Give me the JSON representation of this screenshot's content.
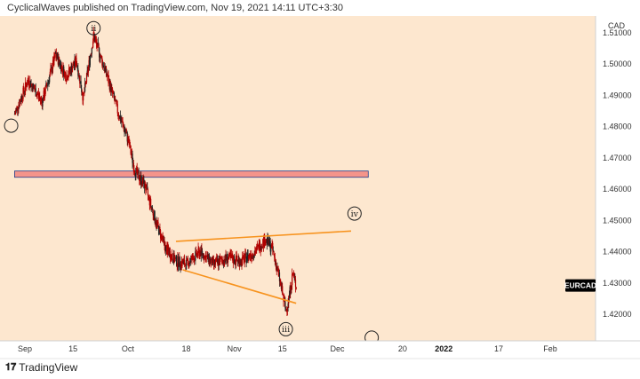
{
  "header": {
    "publisher_text": "CyclicalWaves published on TradingView.com, Nov 19, 2021 14:11 UTC+3:30"
  },
  "footer": {
    "brand": "TradingView",
    "logo_icon": "tradingview-logo-icon"
  },
  "colors": {
    "background": "#fde7cf",
    "candle": "#b00000",
    "candle_dark": "#222222",
    "zone_fill": "#f4948a",
    "zone_stroke": "#1f3a8a",
    "trendline": "#f7931e",
    "wave_circle": "#222222",
    "badge_bg": "#000000",
    "badge_text": "#ffffff"
  },
  "chart_data": {
    "type": "candlestick",
    "symbol": "EURCAD",
    "currency": "CAD",
    "ylim": [
      1.413,
      1.514
    ],
    "y_ticks": [
      "1.51000",
      "1.50000",
      "1.49000",
      "1.48000",
      "1.47000",
      "1.46000",
      "1.45000",
      "1.44000",
      "1.43000",
      "1.42000"
    ],
    "y_tick_values": [
      1.51,
      1.5,
      1.49,
      1.48,
      1.47,
      1.46,
      1.45,
      1.44,
      1.43,
      1.42
    ],
    "x_ticks": [
      {
        "label": "Sep",
        "bold": false
      },
      {
        "label": "15",
        "bold": false
      },
      {
        "label": "Oct",
        "bold": false
      },
      {
        "label": "18",
        "bold": false
      },
      {
        "label": "Nov",
        "bold": false
      },
      {
        "label": "15",
        "bold": false
      },
      {
        "label": "Dec",
        "bold": false
      },
      {
        "label": "20",
        "bold": false
      },
      {
        "label": "2022",
        "bold": true
      },
      {
        "label": "17",
        "bold": false
      },
      {
        "label": "Feb",
        "bold": false
      }
    ],
    "x_tick_dates": [
      "2021-09-01",
      "2021-09-15",
      "2021-10-01",
      "2021-10-18",
      "2021-11-01",
      "2021-11-15",
      "2021-12-01",
      "2021-12-20",
      "2022-01-01",
      "2022-01-17",
      "2022-02-01"
    ],
    "price_path": [
      [
        "2021-08-29",
        1.484
      ],
      [
        "2021-09-02",
        1.495
      ],
      [
        "2021-09-06",
        1.488
      ],
      [
        "2021-09-10",
        1.503
      ],
      [
        "2021-09-13",
        1.496
      ],
      [
        "2021-09-16",
        1.501
      ],
      [
        "2021-09-18",
        1.489
      ],
      [
        "2021-09-21",
        1.509
      ],
      [
        "2021-09-25",
        1.496
      ],
      [
        "2021-09-28",
        1.485
      ],
      [
        "2021-10-01",
        1.476
      ],
      [
        "2021-10-03",
        1.466
      ],
      [
        "2021-10-06",
        1.461
      ],
      [
        "2021-10-09",
        1.45
      ],
      [
        "2021-10-12",
        1.441
      ],
      [
        "2021-10-15",
        1.437
      ],
      [
        "2021-10-18",
        1.436
      ],
      [
        "2021-10-22",
        1.44
      ],
      [
        "2021-10-26",
        1.436
      ],
      [
        "2021-10-30",
        1.438
      ],
      [
        "2021-11-03",
        1.437
      ],
      [
        "2021-11-07",
        1.44
      ],
      [
        "2021-11-10",
        1.444
      ],
      [
        "2021-11-12",
        1.441
      ],
      [
        "2021-11-14",
        1.432
      ],
      [
        "2021-11-16",
        1.421
      ],
      [
        "2021-11-17",
        1.426
      ],
      [
        "2021-11-18",
        1.433
      ],
      [
        "2021-11-19",
        1.429
      ]
    ],
    "resistance_zone": {
      "y_from": 1.4638,
      "y_to": 1.4658,
      "x_from": "2021-08-29",
      "x_to": "2021-12-10"
    },
    "trendlines": [
      {
        "name": "upper",
        "from": [
          "2021-10-15",
          1.4433
        ],
        "to": [
          "2021-12-05",
          1.4466
        ]
      },
      {
        "name": "lower",
        "from": [
          "2021-10-17",
          1.4342
        ],
        "to": [
          "2021-11-19",
          1.4235
        ]
      }
    ],
    "wave_labels": [
      {
        "text": "ii",
        "date": "2021-09-21",
        "price": 1.5115
      },
      {
        "text": "iv",
        "date": "2021-12-06",
        "price": 1.4522
      },
      {
        "text": "iii",
        "date": "2021-11-16",
        "price": 1.4152
      },
      {
        "text": "",
        "date": "2021-12-11",
        "price": 1.4125
      },
      {
        "text": "",
        "date": "2021-08-28",
        "price": 1.4803
      }
    ],
    "last_price_label": "EURCAD",
    "last_price": 1.4292
  }
}
